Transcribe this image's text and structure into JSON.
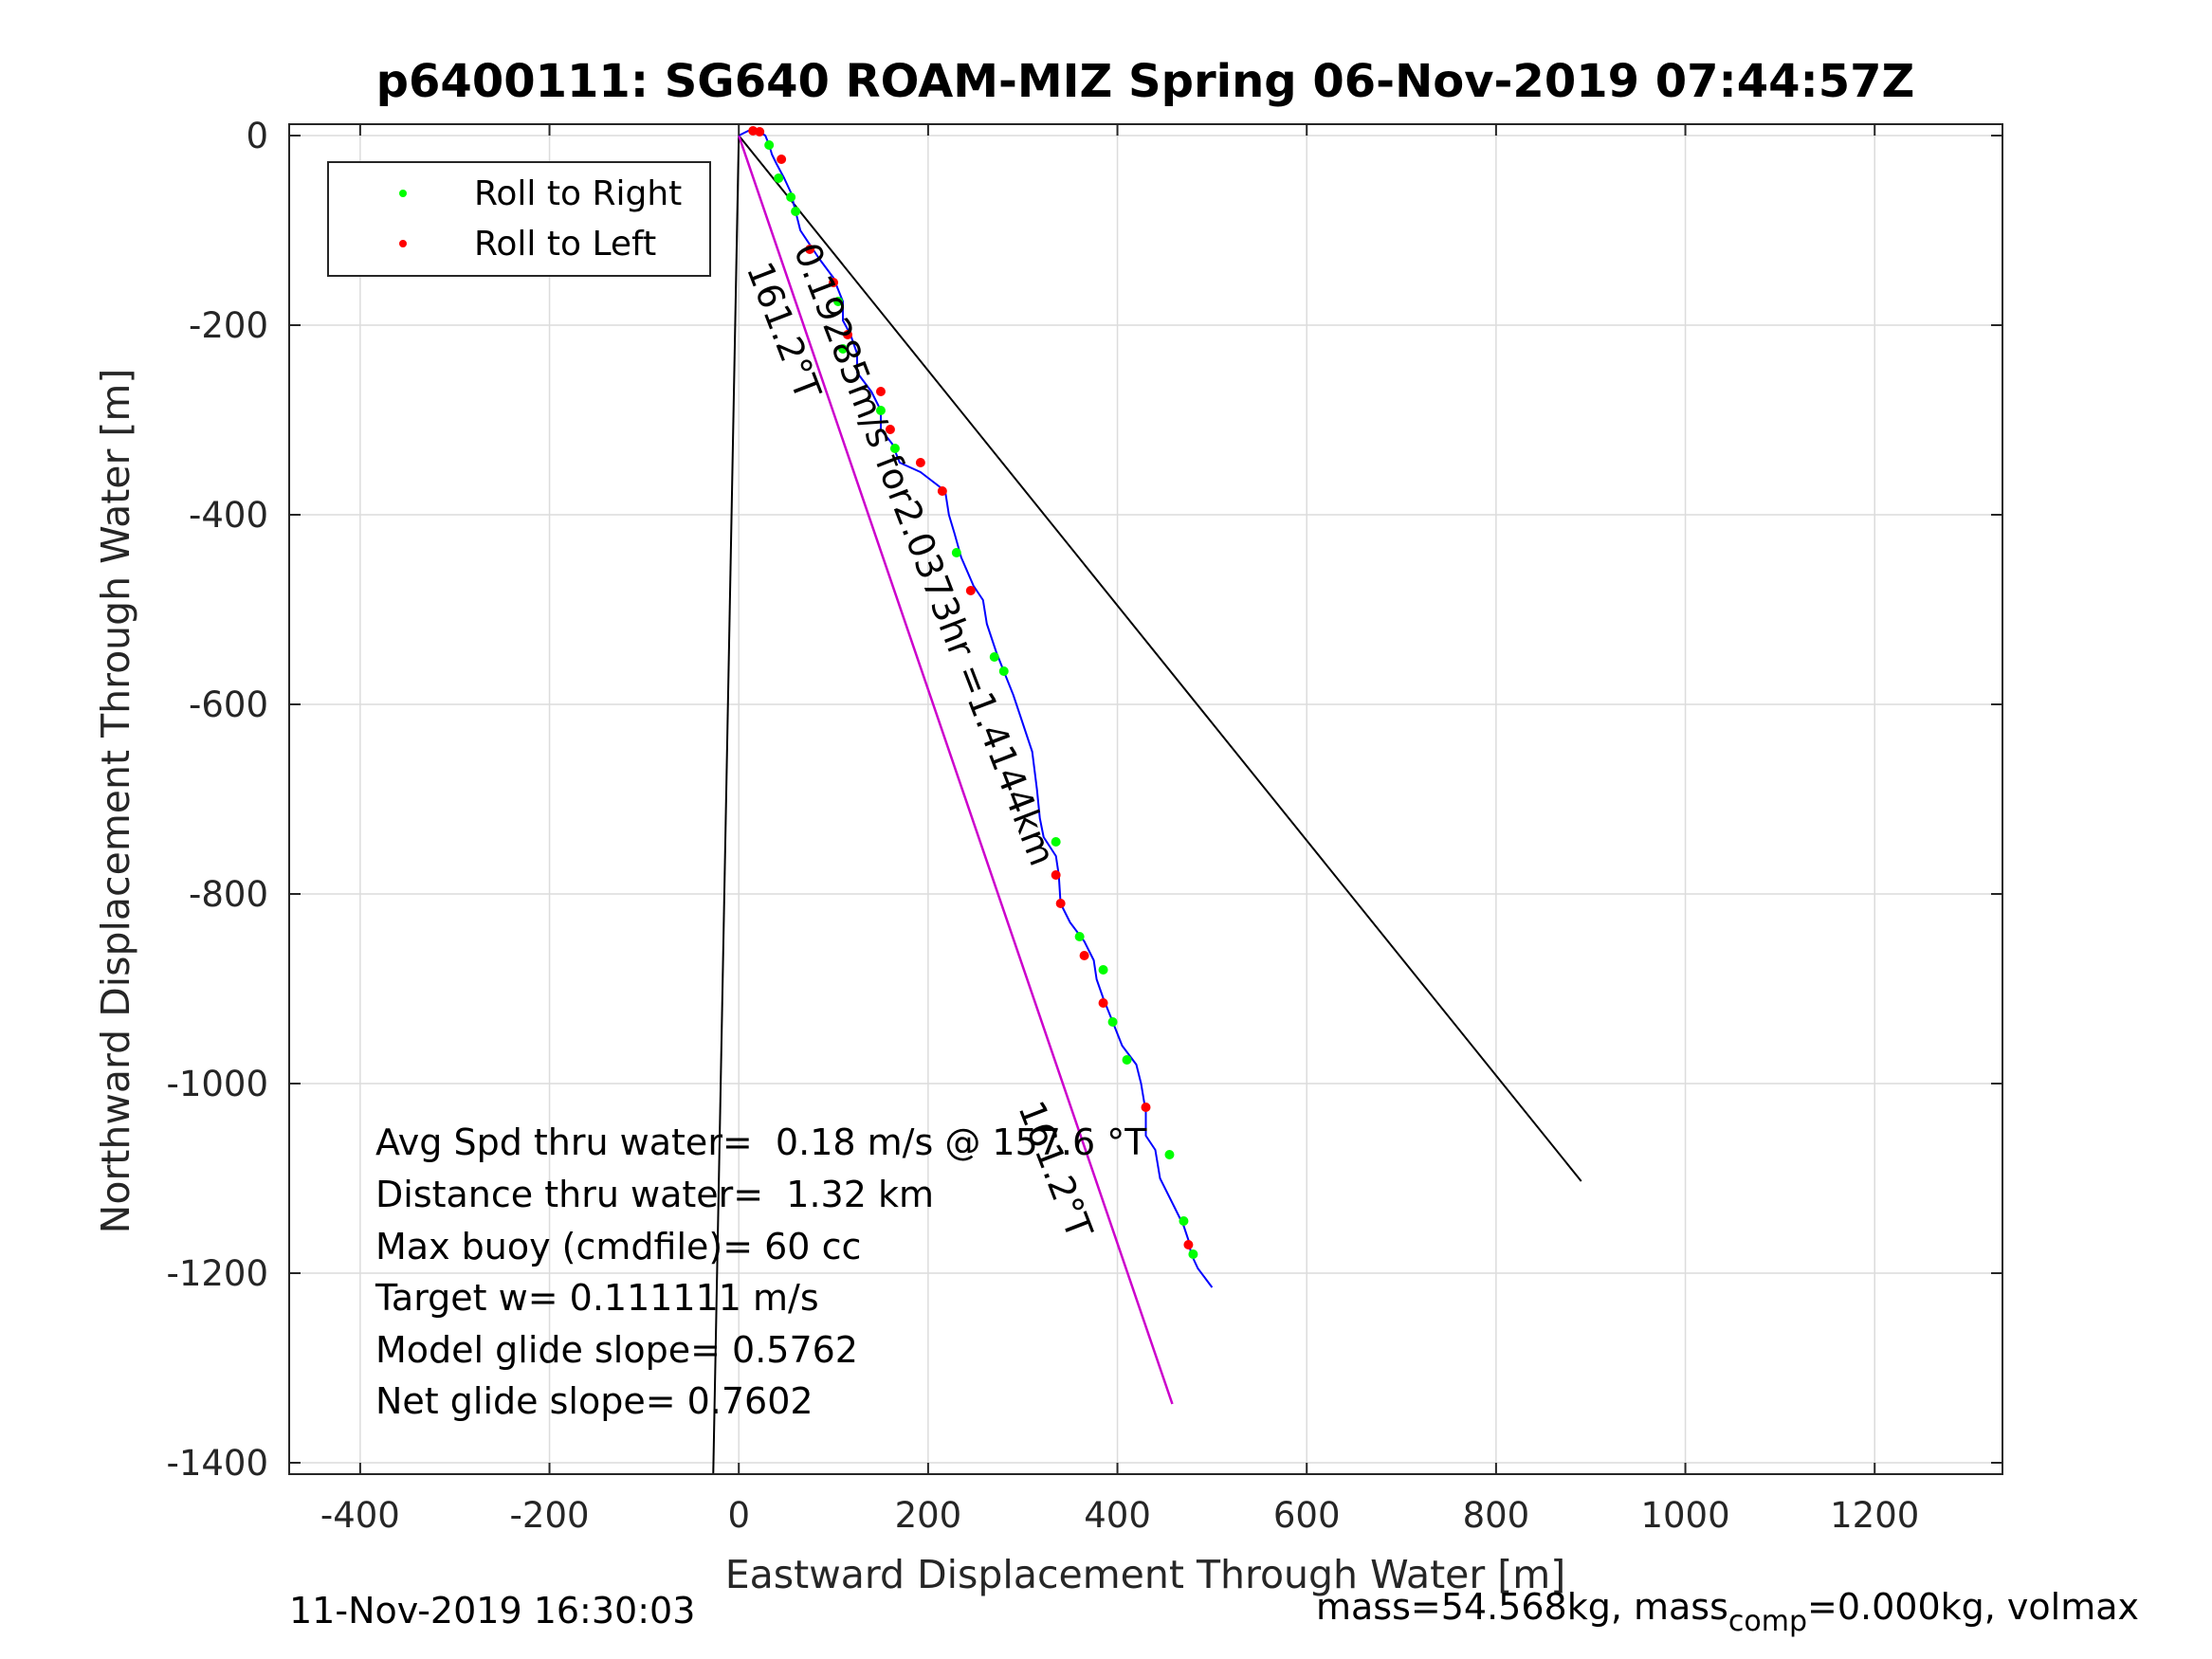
{
  "footer": {
    "timestamp": "11-Nov-2019 16:30:03",
    "mass_prefix": "mass=54.568kg, mass",
    "mass_sub": "comp",
    "mass_suffix": "=0.000kg, volmax"
  },
  "chart_data": {
    "type": "line",
    "title": "p6400111: SG640 ROAM-MIZ Spring 06-Nov-2019 07:44:57Z",
    "xlabel": "Eastward Displacement Through Water [m]",
    "ylabel": "Northward Displacement Through Water [m]",
    "xlim": [
      -475,
      1335
    ],
    "ylim": [
      -1412,
      12
    ],
    "xticks": [
      -400,
      -200,
      0,
      200,
      400,
      600,
      800,
      1000,
      1200
    ],
    "yticks": [
      0,
      -200,
      -400,
      -600,
      -800,
      -1000,
      -1200,
      -1400
    ],
    "grid": true,
    "legend": {
      "placement": "top-left",
      "entries": [
        {
          "label": "Roll to Right",
          "color": "#00ff00"
        },
        {
          "label": "Roll to Left",
          "color": "#ff0000"
        }
      ]
    },
    "colors": {
      "track": "#0000ff",
      "heading_line": "#cc00cc",
      "rays": "#000000",
      "roll_right": "#00ff00",
      "roll_left": "#ff0000"
    },
    "series": [
      {
        "name": "",
        "x": [
          0,
          10,
          20,
          28,
          32,
          35,
          40,
          48,
          55,
          60,
          65,
          75,
          85,
          100,
          110,
          110,
          118,
          125,
          125,
          140,
          150,
          150,
          162,
          170,
          192,
          205,
          218,
          222,
          228,
          235,
          248,
          258,
          262,
          272,
          280,
          290,
          300,
          310,
          315,
          318,
          322,
          335,
          338,
          340,
          350,
          365,
          375,
          378,
          385,
          395,
          405,
          420,
          425,
          430,
          430,
          440,
          445,
          460,
          470,
          475,
          478,
          485,
          500
        ],
        "y": [
          0,
          5,
          5,
          0,
          -10,
          -20,
          -30,
          -45,
          -60,
          -80,
          -100,
          -115,
          -130,
          -150,
          -175,
          -195,
          -210,
          -230,
          -250,
          -270,
          -290,
          -310,
          -325,
          -345,
          -355,
          -365,
          -375,
          -400,
          -420,
          -445,
          -475,
          -490,
          -515,
          -545,
          -565,
          -590,
          -620,
          -650,
          -690,
          -720,
          -740,
          -760,
          -780,
          -810,
          -830,
          -850,
          -870,
          -890,
          -910,
          -935,
          -960,
          -980,
          -1000,
          -1030,
          -1055,
          -1070,
          -1100,
          -1130,
          -1150,
          -1165,
          -1180,
          -1195,
          -1215
        ]
      }
    ],
    "roll_right_points": {
      "x": [
        32,
        42,
        55,
        60,
        105,
        110,
        150,
        165,
        230,
        270,
        280,
        335,
        360,
        385,
        395,
        410,
        455,
        470,
        480
      ],
      "y": [
        -10,
        -45,
        -65,
        -80,
        -175,
        -225,
        -290,
        -330,
        -440,
        -550,
        -565,
        -745,
        -845,
        -880,
        -935,
        -975,
        -1075,
        -1145,
        -1180
      ]
    },
    "roll_left_points": {
      "x": [
        15,
        22,
        45,
        75,
        100,
        115,
        150,
        160,
        192,
        215,
        245,
        335,
        340,
        365,
        385,
        430,
        475
      ],
      "y": [
        5,
        4,
        -25,
        -120,
        -155,
        -210,
        -270,
        -310,
        -345,
        -375,
        -480,
        -780,
        -810,
        -865,
        -915,
        -1025,
        -1170
      ]
    },
    "rays": [
      {
        "x": [
          0,
          -27
        ],
        "y": [
          0,
          -1412
        ]
      },
      {
        "x": [
          0,
          890
        ],
        "y": [
          0,
          -1103
        ]
      }
    ],
    "heading_line": {
      "x": [
        0,
        458
      ],
      "y": [
        0,
        -1338
      ]
    },
    "annotations": [
      {
        "text": "161.2°T",
        "x": 8,
        "y": -140,
        "rotation_deg": 68.9
      },
      {
        "text": "0.19285m/s for2.0373hr =1.4144km",
        "x": 58,
        "y": -120,
        "rotation_deg": 68.9
      },
      {
        "text": "161.2°T",
        "x": 295,
        "y": -1025,
        "rotation_deg": 68.9
      }
    ],
    "stats": [
      "Avg Spd thru water=  0.18 m/s @ 157.6 °T",
      "Distance thru water=  1.32 km",
      "Max buoy (cmdfile)= 60 cc",
      "Target w= 0.111111 m/s",
      "Model glide slope= 0.5762",
      "Net glide slope= 0.7602"
    ]
  }
}
